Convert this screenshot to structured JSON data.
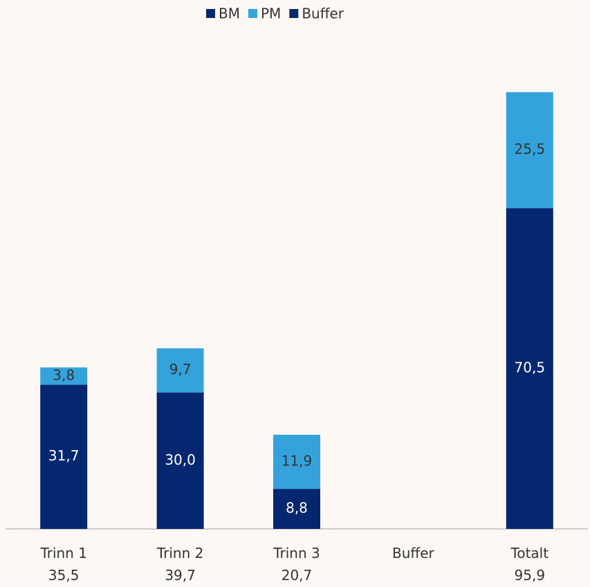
{
  "chart_data": {
    "type": "stacked_bar",
    "categories": [
      "Trinn 1\n35,5",
      "Trinn 2\n39,7",
      "Trinn 3\n20,7",
      "Buffer",
      "Totalt\n95,9"
    ],
    "series": [
      {
        "name": "BM",
        "color": "#05276f",
        "values": [
          31.7,
          30.0,
          8.8,
          null,
          70.5
        ],
        "value_labels": [
          "31,7",
          "30,0",
          "8,8",
          null,
          "70,5"
        ]
      },
      {
        "name": "PM",
        "color": "#34a3dc",
        "values": [
          3.8,
          9.7,
          11.9,
          null,
          25.5
        ],
        "value_labels": [
          "3,8",
          "9,7",
          "11,9",
          null,
          "25,5"
        ]
      },
      {
        "name": "Buffer",
        "color": "#0a2a6e",
        "values": [
          null,
          null,
          null,
          null,
          null
        ]
      }
    ],
    "ylim": [
      0,
      100
    ],
    "legend": "top"
  }
}
